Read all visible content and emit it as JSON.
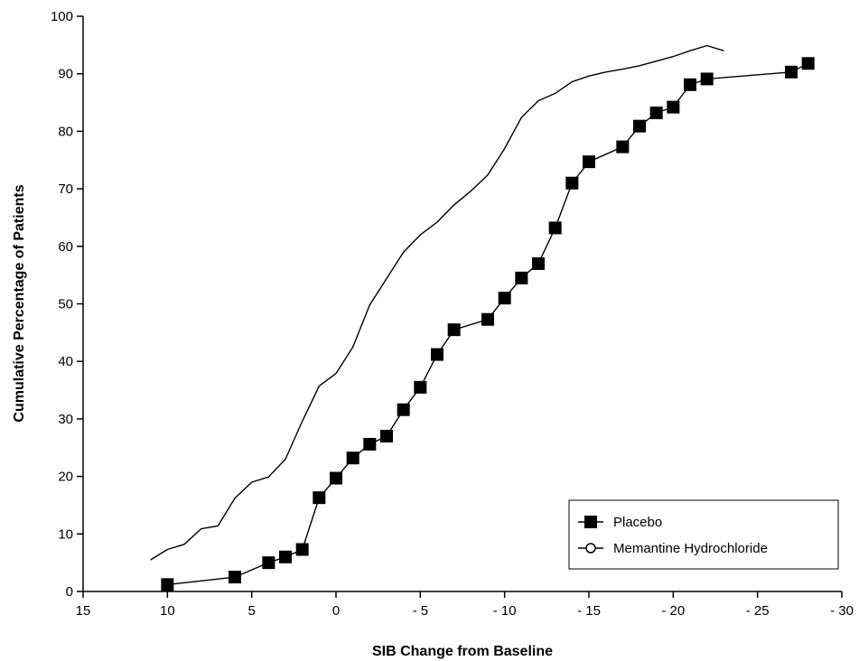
{
  "chart_data": {
    "type": "line",
    "xlabel": "SIB Change from Baseline",
    "ylabel": "Cumulative Percentage of Patients",
    "xlim": [
      15,
      -30
    ],
    "ylim": [
      0,
      100
    ],
    "x_ticks": [
      15,
      10,
      5,
      0,
      -5,
      -10,
      -15,
      -20,
      -25,
      -30
    ],
    "x_tick_labels": [
      "15",
      "10",
      "5",
      "0",
      "- 5",
      "- 10",
      "- 15",
      "- 20",
      "- 25",
      "- 30"
    ],
    "y_ticks": [
      0,
      10,
      20,
      30,
      40,
      50,
      60,
      70,
      80,
      90,
      100
    ],
    "y_tick_labels": [
      "0",
      "10",
      "20",
      "30",
      "40",
      "50",
      "60",
      "70",
      "80",
      "90",
      "100"
    ],
    "grid": false,
    "legend": {
      "position": "bottom-right",
      "entries": [
        "Placebo",
        "Memantine Hydrochloride"
      ]
    },
    "series": [
      {
        "name": "Placebo",
        "marker": "filled-square",
        "color": "#000000",
        "x": [
          10,
          6,
          4,
          3,
          2,
          1,
          0,
          -1,
          -2,
          -3,
          -4,
          -5,
          -6,
          -7,
          -9,
          -10,
          -11,
          -12,
          -13,
          -14,
          -15,
          -17,
          -18,
          -19,
          -20,
          -21,
          -22,
          -27,
          -28
        ],
        "y": [
          1.2,
          2.5,
          5.0,
          6.0,
          7.3,
          16.3,
          19.7,
          23.2,
          25.6,
          27.0,
          31.6,
          35.5,
          41.2,
          45.5,
          47.3,
          51.0,
          54.5,
          57.0,
          63.2,
          71.0,
          74.7,
          77.3,
          80.9,
          83.2,
          84.2,
          88.1,
          89.1,
          90.3,
          91.8
        ]
      },
      {
        "name": "Memantine Hydrochloride",
        "marker": "open-circle",
        "color": "#000000",
        "x": [
          11,
          10,
          9,
          8,
          7,
          6,
          5,
          4,
          3,
          2,
          1,
          0,
          -1,
          -2,
          -3,
          -4,
          -5,
          -6,
          -7,
          -8,
          -9,
          -10,
          -11,
          -12,
          -13,
          -14,
          -15,
          -16,
          -17,
          -18,
          -19,
          -20,
          -21,
          -22,
          -23
        ],
        "y": [
          5.5,
          7.3,
          8.2,
          10.9,
          11.4,
          16.2,
          19.0,
          19.9,
          23.0,
          29.6,
          35.7,
          37.9,
          42.5,
          49.8,
          54.4,
          59.0,
          62.0,
          64.2,
          67.2,
          69.6,
          72.4,
          77.0,
          82.4,
          85.3,
          86.6,
          88.6,
          89.6,
          90.3,
          90.8,
          91.4,
          92.2,
          93.0,
          94.0,
          94.9,
          94.0
        ]
      }
    ]
  }
}
